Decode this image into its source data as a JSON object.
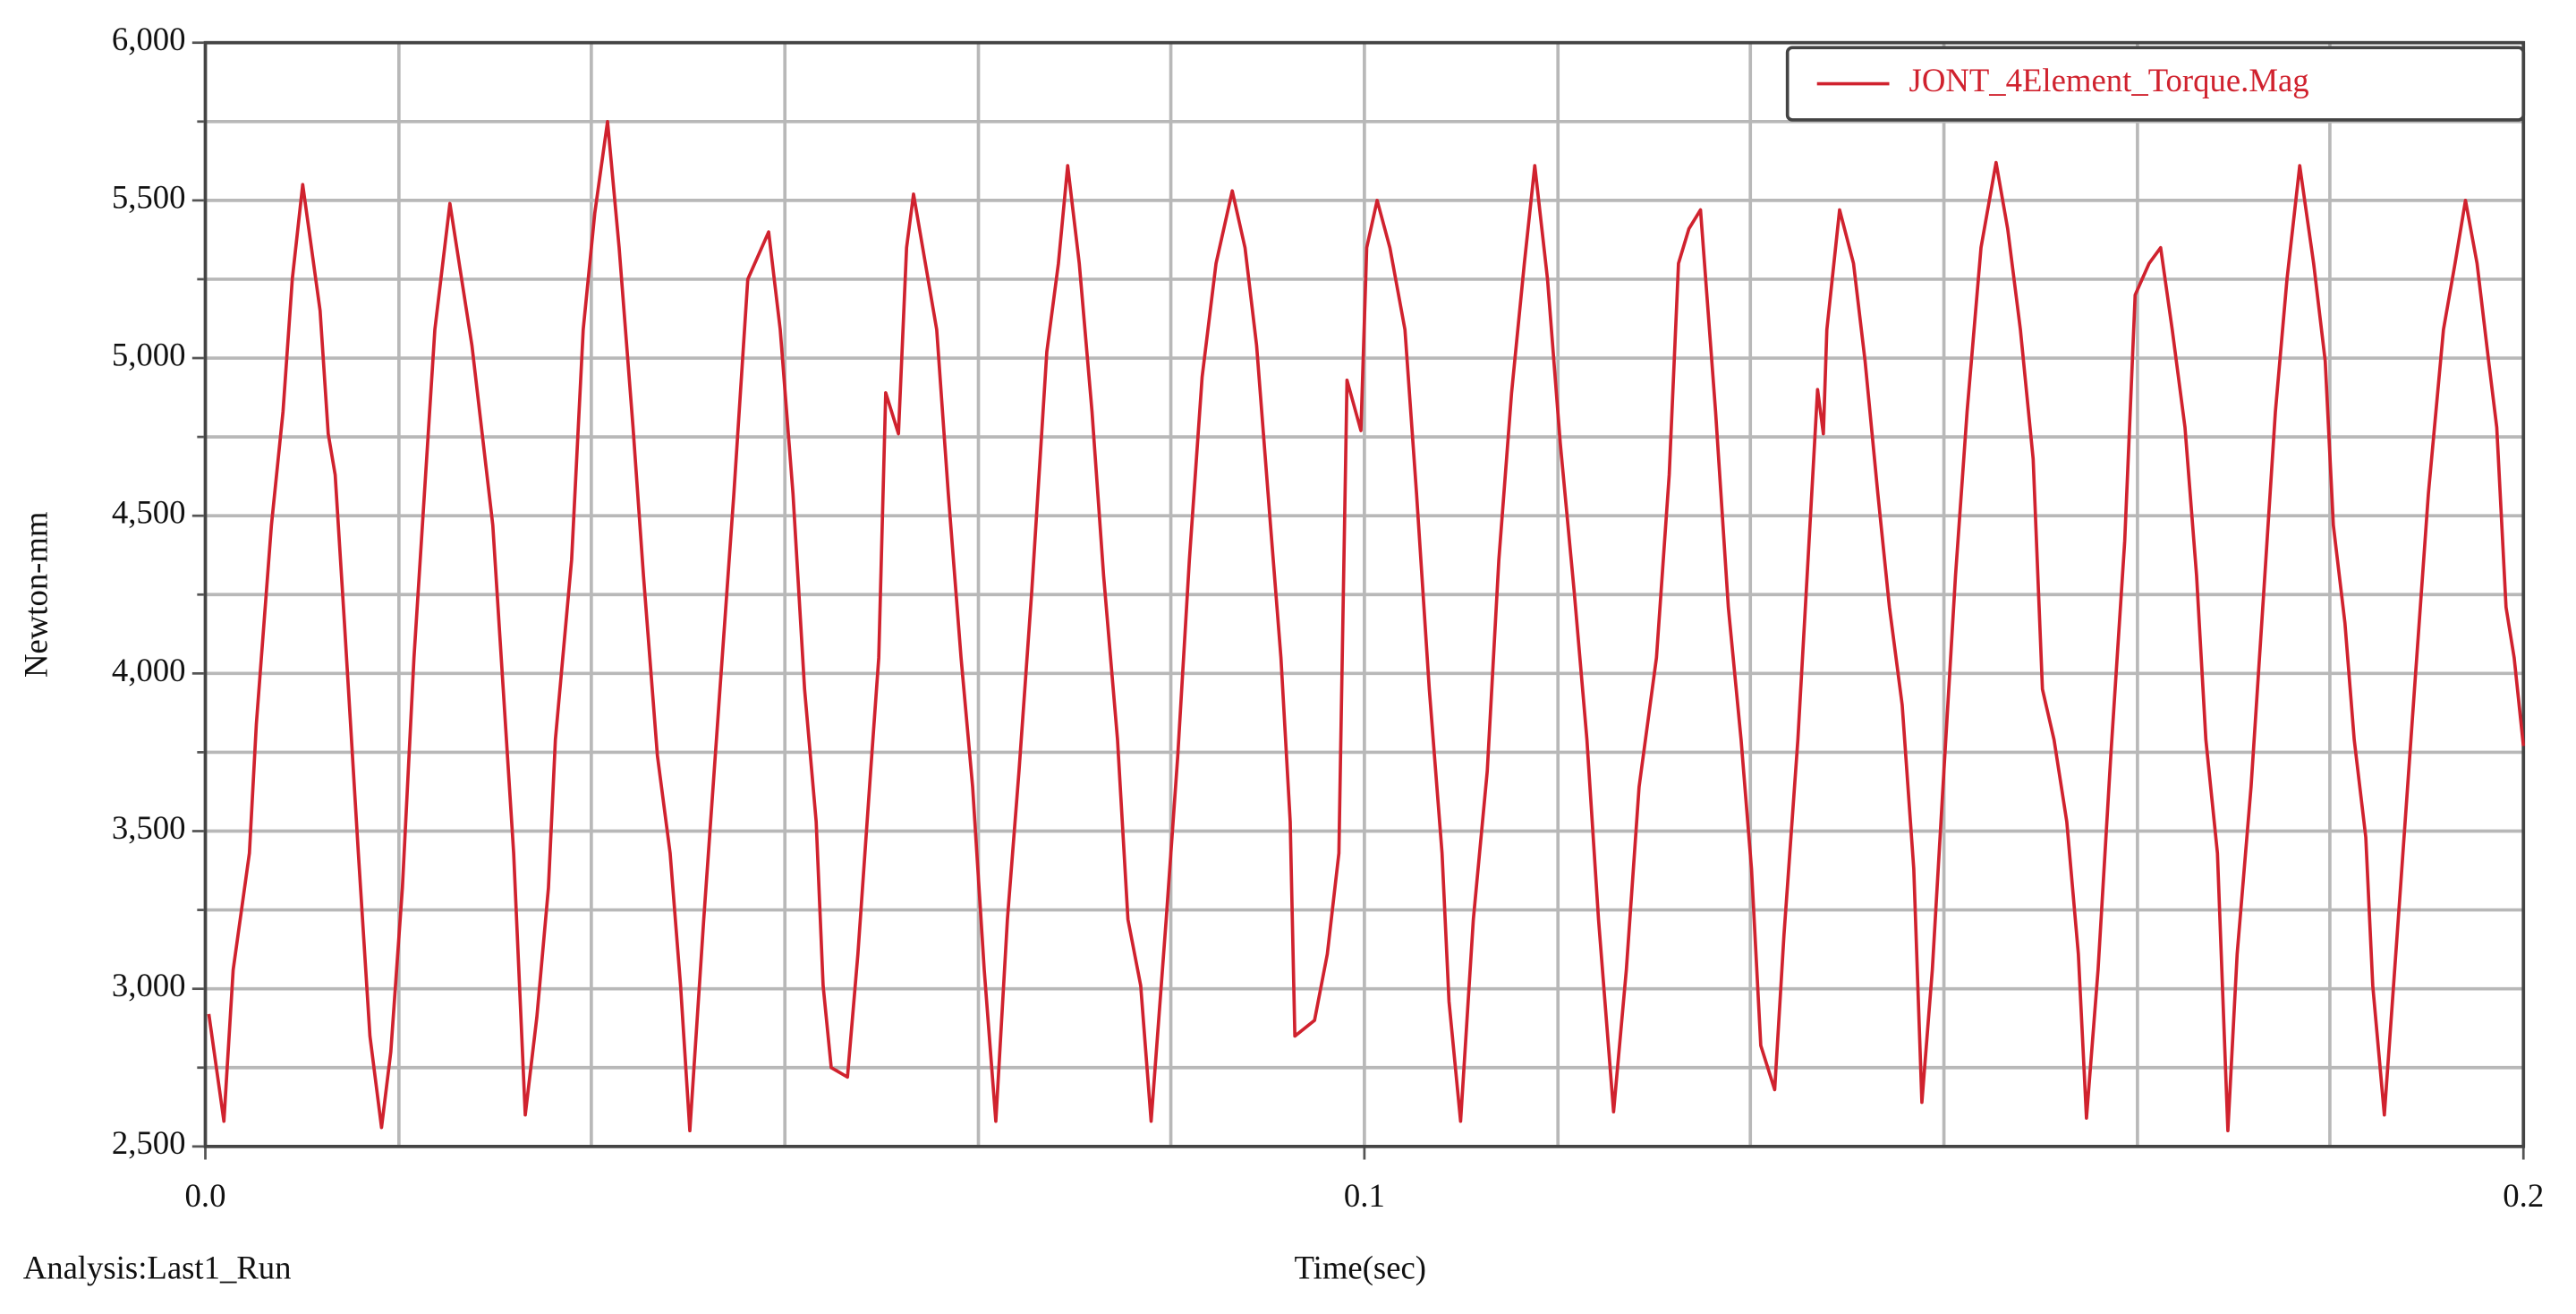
{
  "chart_data": {
    "type": "line",
    "y_label": "Newton-mm",
    "x_label": "Time(sec)",
    "footnote": "Analysis:Last1_Run",
    "xlim": [
      0,
      0.2
    ],
    "xticks": [
      {
        "value": 0,
        "label": "0.0"
      },
      0.1,
      0.2
    ],
    "xgrid": [
      0.0167,
      0.0333,
      0.05,
      0.0667,
      0.0833,
      0.1167,
      0.1333,
      0.15,
      0.1667,
      0.1833
    ],
    "ylim": [
      2500,
      6000
    ],
    "yticks": [
      {
        "value": 2500,
        "label": "2,500"
      },
      {
        "value": 3000,
        "label": "3,000"
      },
      {
        "value": 3500,
        "label": "3,500"
      },
      {
        "value": 4000,
        "label": "4,000"
      },
      {
        "value": 4500,
        "label": "4,500"
      },
      {
        "value": 5000,
        "label": "5,000"
      },
      {
        "value": 5500,
        "label": "5,500"
      },
      {
        "value": 6000,
        "label": "6,000"
      }
    ],
    "ygrid": [
      2750,
      3250,
      3750,
      4250,
      4750,
      5250,
      5750
    ],
    "grid": true,
    "legend_position": "upper-right",
    "x": [
      0.0003,
      0.0016,
      0.0024,
      0.0038,
      0.0044,
      0.0057,
      0.0067,
      0.0075,
      0.0084,
      0.0099,
      0.0106,
      0.0112,
      0.012,
      0.0132,
      0.0142,
      0.0152,
      0.016,
      0.017,
      0.018,
      0.0189,
      0.0198,
      0.0211,
      0.023,
      0.0248,
      0.0257,
      0.0266,
      0.0276,
      0.0286,
      0.0296,
      0.0302,
      0.0316,
      0.0326,
      0.0336,
      0.0347,
      0.0357,
      0.0369,
      0.0378,
      0.039,
      0.0401,
      0.041,
      0.0418,
      0.043,
      0.0444,
      0.0456,
      0.0468,
      0.0486,
      0.0496,
      0.0507,
      0.0517,
      0.0527,
      0.0533,
      0.054,
      0.0554,
      0.0563,
      0.0574,
      0.0581,
      0.0587,
      0.0598,
      0.0605,
      0.0611,
      0.0631,
      0.0641,
      0.0652,
      0.0662,
      0.0672,
      0.0682,
      0.0692,
      0.0702,
      0.0713,
      0.0726,
      0.0736,
      0.0744,
      0.0754,
      0.0765,
      0.0775,
      0.0787,
      0.0796,
      0.0807,
      0.0816,
      0.0829,
      0.0839,
      0.0849,
      0.086,
      0.0872,
      0.0886,
      0.0897,
      0.0907,
      0.0919,
      0.0928,
      0.0936,
      0.094,
      0.0957,
      0.0968,
      0.0978,
      0.0985,
      0.0997,
      0.1002,
      0.1011,
      0.1022,
      0.1035,
      0.1045,
      0.1056,
      0.1067,
      0.1073,
      0.1083,
      0.1094,
      0.1106,
      0.1116,
      0.1127,
      0.1138,
      0.1147,
      0.1158,
      0.1169,
      0.1181,
      0.1192,
      0.1202,
      0.1215,
      0.1226,
      0.1237,
      0.1252,
      0.1263,
      0.1271,
      0.128,
      0.129,
      0.1303,
      0.1314,
      0.1325,
      0.1334,
      0.1342,
      0.1354,
      0.1362,
      0.1374,
      0.1382,
      0.1391,
      0.1396,
      0.1399,
      0.141,
      0.1422,
      0.1432,
      0.1443,
      0.1453,
      0.1464,
      0.1474,
      0.1481,
      0.149,
      0.15,
      0.151,
      0.152,
      0.1532,
      0.1545,
      0.1555,
      0.1566,
      0.1577,
      0.1585,
      0.1595,
      0.1606,
      0.1616,
      0.1623,
      0.1633,
      0.1644,
      0.1656,
      0.1665,
      0.1677,
      0.1687,
      0.1697,
      0.1708,
      0.1718,
      0.1726,
      0.1736,
      0.1745,
      0.1753,
      0.1765,
      0.1776,
      0.1786,
      0.1796,
      0.1807,
      0.1819,
      0.1829,
      0.1836,
      0.1846,
      0.1854,
      0.1864,
      0.187,
      0.188,
      0.1892,
      0.1906,
      0.1918,
      0.1931,
      0.1941,
      0.195,
      0.196,
      0.197,
      0.1977,
      0.1985,
      0.1992,
      0.2
    ],
    "series": [
      {
        "name": "JONT_4Element_Torque.Mag",
        "color": "#d0222e",
        "values": [
          2920,
          2580,
          3060,
          3430,
          3840,
          4470,
          4830,
          5250,
          5550,
          5150,
          4760,
          4630,
          4160,
          3430,
          2850,
          2560,
          2800,
          3320,
          4050,
          4570,
          5090,
          5490,
          5040,
          4470,
          3950,
          3430,
          2600,
          2910,
          3320,
          3790,
          4360,
          5090,
          5460,
          5750,
          5350,
          4780,
          4310,
          3740,
          3430,
          3010,
          2550,
          3220,
          3950,
          4570,
          5250,
          5400,
          5090,
          4570,
          3950,
          3530,
          3010,
          2750,
          2720,
          3110,
          3690,
          4050,
          4890,
          4760,
          5350,
          5520,
          5090,
          4570,
          4050,
          3640,
          3060,
          2580,
          3220,
          3690,
          4260,
          5020,
          5300,
          5610,
          5300,
          4830,
          4310,
          3790,
          3220,
          3010,
          2580,
          3220,
          3740,
          4360,
          4940,
          5300,
          5530,
          5350,
          5040,
          4470,
          4050,
          3530,
          2850,
          2900,
          3110,
          3430,
          4930,
          4770,
          5350,
          5500,
          5350,
          5090,
          4570,
          3950,
          3430,
          2960,
          2580,
          3220,
          3690,
          4360,
          4890,
          5300,
          5610,
          5250,
          4730,
          4260,
          3790,
          3220,
          2610,
          3060,
          3640,
          4050,
          4630,
          5300,
          5410,
          5470,
          4830,
          4210,
          3790,
          3380,
          2820,
          2680,
          3170,
          3790,
          4310,
          4900,
          4760,
          5090,
          5470,
          5300,
          4990,
          4570,
          4210,
          3900,
          3380,
          2640,
          3060,
          3690,
          4310,
          4830,
          5350,
          5620,
          5410,
          5090,
          4680,
          3950,
          3790,
          3530,
          3110,
          2590,
          3060,
          3740,
          4420,
          5200,
          5300,
          5350,
          5090,
          4780,
          4310,
          3790,
          3430,
          2550,
          3110,
          3640,
          4260,
          4830,
          5250,
          5610,
          5300,
          4990,
          4470,
          4160,
          3790,
          3480,
          3010,
          2600,
          3220,
          3950,
          4570,
          5090,
          5300,
          5500,
          5300,
          4990,
          4780,
          4210,
          4050,
          3770
        ]
      }
    ]
  }
}
